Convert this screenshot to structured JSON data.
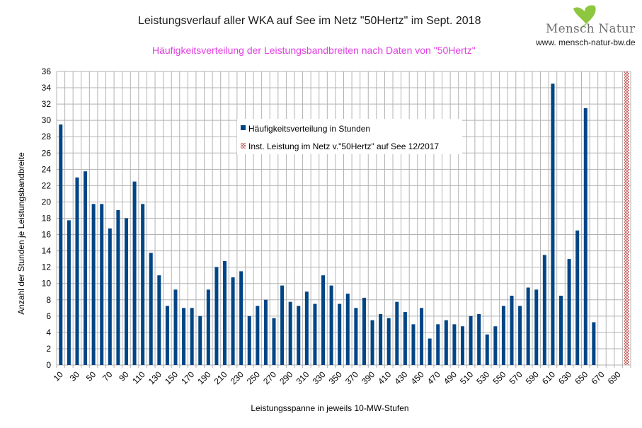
{
  "logo": {
    "name": "Mensch Natur",
    "url": "www. mensch-natur-bw.de",
    "leaf_color": "#8dc63f"
  },
  "chart_data": {
    "type": "bar",
    "title": "Leistungsverlauf aller WKA auf See im Netz \"50Hertz\" im Sept. 2018",
    "subtitle": "Häufigkeitsverteilung der Leistungsbandbreiten nach Daten von \"50Hertz\"",
    "xlabel": "Leistungsspanne in jeweils 10-MW-Stufen",
    "ylabel": "Anzahl der Stunden je Leistungsbandbreite",
    "ylim": [
      0,
      36
    ],
    "yticks": [
      0,
      2,
      4,
      6,
      8,
      10,
      12,
      14,
      16,
      18,
      20,
      22,
      24,
      26,
      28,
      30,
      32,
      34,
      36
    ],
    "grid": true,
    "categories": [
      10,
      20,
      30,
      40,
      50,
      60,
      70,
      80,
      90,
      100,
      110,
      120,
      130,
      140,
      150,
      160,
      170,
      180,
      190,
      200,
      210,
      220,
      230,
      240,
      250,
      260,
      270,
      280,
      290,
      300,
      310,
      320,
      330,
      340,
      350,
      360,
      370,
      380,
      390,
      400,
      410,
      420,
      430,
      440,
      450,
      460,
      470,
      480,
      490,
      500,
      510,
      520,
      530,
      540,
      550,
      560,
      570,
      580,
      590,
      600,
      610,
      620,
      630,
      640,
      650,
      660,
      670,
      680,
      690,
      700
    ],
    "xtick_labels_shown_every": 2,
    "series": [
      {
        "name": "Häufigkeitsverteilung in Stunden",
        "color": "#004586",
        "values": [
          29.5,
          17.75,
          23,
          23.75,
          19.75,
          19.75,
          16.75,
          19,
          18,
          22.5,
          19.75,
          13.75,
          11,
          7.25,
          9.25,
          7,
          7,
          6,
          9.25,
          12,
          12.75,
          10.75,
          11.5,
          6,
          7.25,
          8,
          5.75,
          9.75,
          7.75,
          7.25,
          9,
          7.5,
          11,
          9.75,
          7.5,
          8.75,
          7,
          8.25,
          5.5,
          6.25,
          5.75,
          7.75,
          6.5,
          5,
          7,
          3.25,
          5,
          5.5,
          5,
          4.75,
          6,
          6.25,
          3.75,
          4.75,
          7.25,
          8.5,
          7.25,
          9.5,
          9.25,
          13.5,
          34.5,
          8.5,
          13,
          16.5,
          31.5,
          5.25,
          0,
          0,
          0,
          0
        ]
      },
      {
        "name": "Inst. Leistung im Netz v.\"50Hertz\" auf See 12/2017",
        "color": "#c0504d",
        "pattern": "cross-hatch",
        "category": 700,
        "values_note": "full-height marker at 700",
        "value": 36
      }
    ],
    "legend": {
      "placement": "inside-top-center",
      "entries": [
        "Häufigkeitsverteilung in Stunden",
        "Inst. Leistung im Netz v.\"50Hertz\" auf See 12/2017"
      ]
    }
  }
}
